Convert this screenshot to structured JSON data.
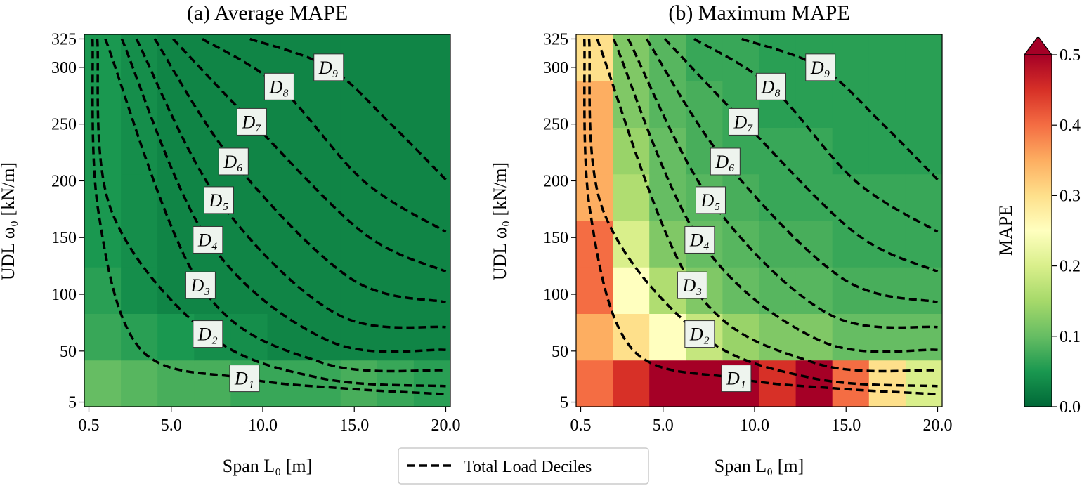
{
  "chart_data": {
    "type": "heatmap",
    "x_label": "Span L₀ [m]",
    "y_label": "UDL ω₀ [kN/m]",
    "xlim": [
      0.25,
      20.25
    ],
    "ylim": [
      1,
      329
    ],
    "xticks": [
      0.5,
      {
        "value": 5,
        "label": "5.0"
      },
      {
        "value": 10,
        "label": "10.0"
      },
      {
        "value": 15,
        "label": "15.0"
      },
      {
        "value": 20,
        "label": "20.0"
      }
    ],
    "yticks": [
      5,
      50,
      100,
      150,
      200,
      250,
      300,
      325
    ],
    "x_edges": [
      0.25,
      2.25,
      4.25,
      6.25,
      8.25,
      10.25,
      12.25,
      14.25,
      16.25,
      18.25,
      20.25
    ],
    "y_edges": [
      1,
      42,
      83,
      124,
      165,
      206,
      247,
      288,
      329
    ],
    "colormap": [
      "#006837",
      "#1a9850",
      "#66bd63",
      "#a6d96a",
      "#d9ef8b",
      "#ffffbf",
      "#fee08b",
      "#fdae61",
      "#f46d43",
      "#d73027",
      "#a50026"
    ],
    "colorbar": {
      "label": "MAPE",
      "lim": [
        0,
        0.5
      ],
      "ticks": [
        {
          "value": 0,
          "label": "0.0"
        },
        0.1,
        0.2,
        0.3,
        0.4,
        0.5
      ]
    },
    "panels": [
      {
        "title": "(a) Average MAPE",
        "values": [
          [
            0.1,
            0.09,
            0.08,
            0.08,
            0.07,
            0.07,
            0.07,
            0.08,
            0.07,
            0.06
          ],
          [
            0.07,
            0.06,
            0.05,
            0.04,
            0.04,
            0.03,
            0.03,
            0.03,
            0.03,
            0.03
          ],
          [
            0.06,
            0.04,
            0.03,
            0.03,
            0.03,
            0.03,
            0.03,
            0.03,
            0.03,
            0.03
          ],
          [
            0.05,
            0.04,
            0.03,
            0.03,
            0.03,
            0.03,
            0.03,
            0.03,
            0.03,
            0.03
          ],
          [
            0.05,
            0.04,
            0.03,
            0.03,
            0.03,
            0.03,
            0.03,
            0.03,
            0.03,
            0.03
          ],
          [
            0.05,
            0.04,
            0.03,
            0.03,
            0.03,
            0.03,
            0.03,
            0.03,
            0.03,
            0.03
          ],
          [
            0.05,
            0.04,
            0.03,
            0.03,
            0.03,
            0.03,
            0.03,
            0.03,
            0.03,
            0.03
          ],
          [
            0.05,
            0.04,
            0.03,
            0.03,
            0.03,
            0.03,
            0.03,
            0.03,
            0.03,
            0.03
          ]
        ]
      },
      {
        "title": "(b) Maximum MAPE",
        "values": [
          [
            0.4,
            0.45,
            0.5,
            0.5,
            0.5,
            0.45,
            0.5,
            0.4,
            0.3,
            0.2
          ],
          [
            0.35,
            0.3,
            0.25,
            0.18,
            0.14,
            0.12,
            0.12,
            0.1,
            0.1,
            0.1
          ],
          [
            0.4,
            0.25,
            0.16,
            0.12,
            0.1,
            0.09,
            0.09,
            0.08,
            0.08,
            0.08
          ],
          [
            0.4,
            0.2,
            0.12,
            0.1,
            0.09,
            0.08,
            0.08,
            0.07,
            0.07,
            0.07
          ],
          [
            0.35,
            0.16,
            0.1,
            0.09,
            0.08,
            0.07,
            0.07,
            0.07,
            0.07,
            0.07
          ],
          [
            0.35,
            0.14,
            0.1,
            0.08,
            0.07,
            0.07,
            0.07,
            0.06,
            0.06,
            0.06
          ],
          [
            0.35,
            0.12,
            0.09,
            0.08,
            0.07,
            0.06,
            0.06,
            0.06,
            0.06,
            0.06
          ],
          [
            0.3,
            0.12,
            0.09,
            0.07,
            0.07,
            0.06,
            0.06,
            0.06,
            0.06,
            0.06
          ]
        ]
      }
    ],
    "curves": [
      {
        "name": "D₁",
        "x": [
          0.7,
          1.0,
          3.3,
          9,
          14.5,
          20
        ],
        "y": [
          325,
          175,
          52,
          26,
          17,
          12
        ]
      },
      {
        "name": "D₂",
        "x": [
          0.96,
          1.7,
          7,
          13.2,
          20
        ],
        "y": [
          325,
          175,
          65,
          26,
          19
        ]
      },
      {
        "name": "D₃",
        "x": [
          1.4,
          6.6,
          13.2,
          20
        ],
        "y": [
          325,
          108,
          40,
          33
        ]
      },
      {
        "name": "D₄",
        "x": [
          2.3,
          7,
          13.6,
          20
        ],
        "y": [
          325,
          148,
          59,
          51
        ]
      },
      {
        "name": "D₅",
        "x": [
          3.1,
          7.6,
          14,
          20
        ],
        "y": [
          325,
          183,
          83,
          71
        ]
      },
      {
        "name": "D₆",
        "x": [
          4.1,
          8.4,
          14.8,
          20
        ],
        "y": [
          325,
          217,
          114,
          93
        ]
      },
      {
        "name": "D₇",
        "x": [
          5.1,
          9.4,
          15.5,
          20
        ],
        "y": [
          325,
          252,
          154,
          120
        ]
      },
      {
        "name": "D₈",
        "x": [
          6.7,
          10.9,
          15.5,
          20
        ],
        "y": [
          325,
          283,
          200,
          155
        ]
      },
      {
        "name": "D₉",
        "x": [
          9.3,
          13.6,
          17,
          20
        ],
        "y": [
          325,
          300,
          250,
          201
        ]
      }
    ],
    "legend_label": "Total Load Deciles"
  }
}
